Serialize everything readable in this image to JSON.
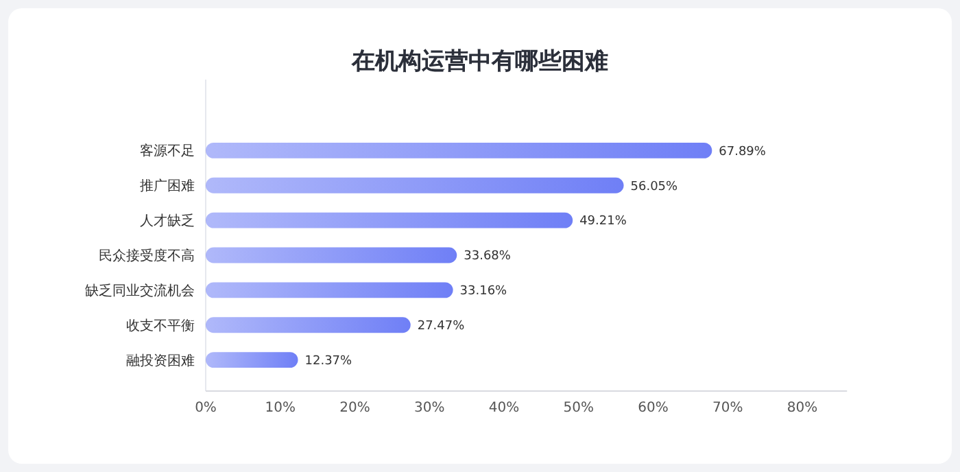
{
  "chart_data": {
    "type": "bar",
    "orientation": "horizontal",
    "title": "在机构运营中有哪些困难",
    "categories": [
      "客源不足",
      "推广困难",
      "人才缺乏",
      "民众接受度不高",
      "缺乏同业交流机会",
      "收支不平衡",
      "融投资困难"
    ],
    "values": [
      67.89,
      56.05,
      49.21,
      33.68,
      33.16,
      27.47,
      12.37
    ],
    "value_labels": [
      "67.89%",
      "56.05%",
      "49.21%",
      "33.68%",
      "33.16%",
      "27.47%",
      "12.37%"
    ],
    "color": "#6f7ff6",
    "xlim": [
      0,
      86
    ],
    "xticks": [
      {
        "value": 0,
        "label": "0%"
      },
      {
        "value": 10,
        "label": "10%"
      },
      {
        "value": 20,
        "label": "20%"
      },
      {
        "value": 30,
        "label": "30%"
      },
      {
        "value": 40,
        "label": "40%"
      },
      {
        "value": 50,
        "label": "50%"
      },
      {
        "value": 60,
        "label": "60%"
      },
      {
        "value": 70,
        "label": "70%"
      },
      {
        "value": 80,
        "label": "80%"
      }
    ],
    "grid": false
  }
}
